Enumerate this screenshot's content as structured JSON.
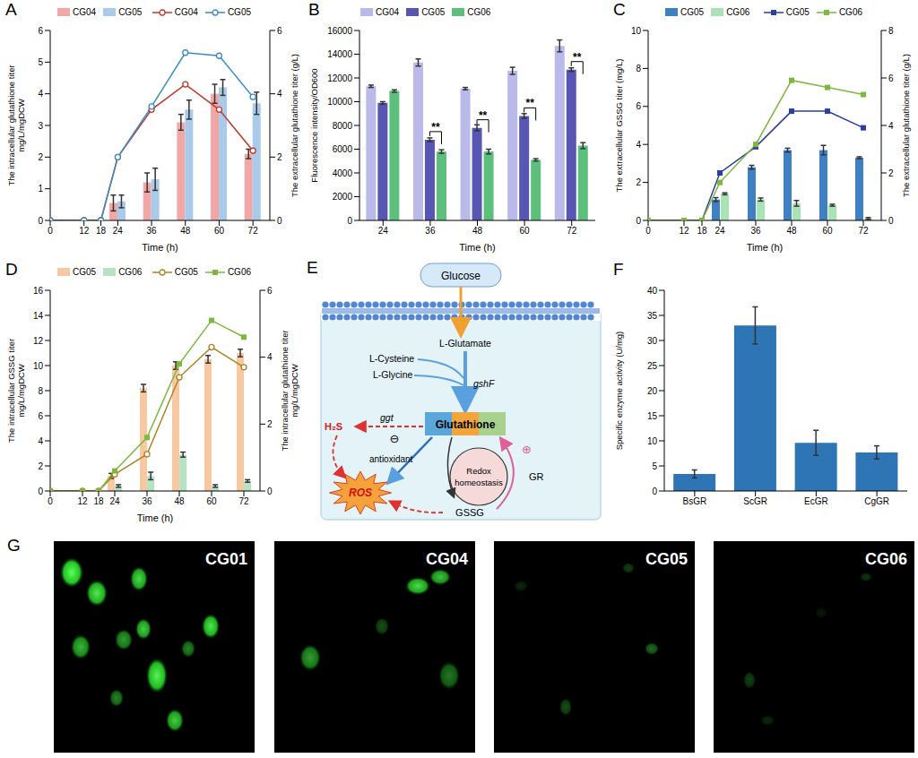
{
  "chart_data": [
    {
      "panel": "A",
      "type": "bar_line",
      "x": [
        0,
        12,
        18,
        24,
        36,
        48,
        60,
        72
      ],
      "xlim": [
        0,
        78
      ],
      "xticks": [
        0,
        12,
        18,
        24,
        36,
        48,
        60,
        72
      ],
      "x_label": "Time (h)",
      "y_label": [
        "The intracellular glutathione titer",
        "mg/L/mgDCW"
      ],
      "ylim": [
        0,
        6
      ],
      "yticks": [
        0,
        1,
        2,
        3,
        4,
        5,
        6
      ],
      "y2_label": [
        "The extracellular glutathione titer (g/L)"
      ],
      "y2lim": [
        0,
        6
      ],
      "y2ticks": [
        0,
        2,
        4,
        6
      ],
      "legend": "top",
      "series": [
        {
          "name": "CG04",
          "type": "bar",
          "axis": "y",
          "color": "#f2a7a7",
          "values": [
            null,
            null,
            null,
            0.55,
            1.2,
            3.1,
            4.0,
            2.1
          ],
          "error": [
            null,
            null,
            null,
            0.25,
            0.3,
            0.25,
            0.3,
            0.15
          ]
        },
        {
          "name": "CG05",
          "type": "bar",
          "axis": "y",
          "color": "#a9cbe9",
          "values": [
            null,
            null,
            null,
            0.6,
            1.3,
            3.5,
            4.2,
            3.7
          ],
          "error": [
            null,
            null,
            null,
            0.2,
            0.35,
            0.3,
            0.25,
            0.35
          ]
        },
        {
          "name": "CG04",
          "type": "line",
          "axis": "y2",
          "color": "#c0392b",
          "marker": "circle",
          "values": [
            0,
            0,
            0,
            2.0,
            3.5,
            4.3,
            3.5,
            2.2
          ]
        },
        {
          "name": "CG05",
          "type": "line",
          "axis": "y2",
          "color": "#3a8cc6",
          "marker": "circle",
          "values": [
            0,
            0,
            0,
            2.0,
            3.6,
            5.3,
            5.2,
            3.9
          ]
        }
      ]
    },
    {
      "panel": "B",
      "type": "bar",
      "categories": [
        "24",
        "36",
        "48",
        "60",
        "72"
      ],
      "x_label": "Time (h)",
      "y_label": [
        "Fluorescence intensity/OD600"
      ],
      "ylim": [
        0,
        16000
      ],
      "yticks": [
        0,
        2000,
        4000,
        6000,
        8000,
        10000,
        12000,
        14000,
        16000
      ],
      "legend": "top",
      "series": [
        {
          "name": "CG04",
          "color": "#b9b9ea",
          "values": [
            11300,
            13300,
            11100,
            12600,
            14700
          ],
          "error": [
            100,
            300,
            100,
            300,
            500
          ]
        },
        {
          "name": "CG05",
          "color": "#5757b3",
          "values": [
            9900,
            6800,
            7800,
            8800,
            12700
          ],
          "error": [
            100,
            150,
            250,
            200,
            150
          ]
        },
        {
          "name": "CG06",
          "color": "#5cbf7b",
          "values": [
            10900,
            5800,
            5800,
            5100,
            6300
          ],
          "error": [
            100,
            150,
            200,
            100,
            250
          ]
        }
      ],
      "annotations": [
        {
          "category": "36",
          "text": "**",
          "from": "CG05",
          "to": "CG06"
        },
        {
          "category": "48",
          "text": "**",
          "from": "CG05",
          "to": "CG06"
        },
        {
          "category": "60",
          "text": "**",
          "from": "CG05",
          "to": "CG06"
        },
        {
          "category": "72",
          "text": "**",
          "from": "CG05",
          "to": "CG06"
        }
      ]
    },
    {
      "panel": "C",
      "type": "bar_line",
      "x": [
        0,
        12,
        18,
        24,
        36,
        48,
        60,
        72
      ],
      "xlim": [
        0,
        78
      ],
      "xticks": [
        0,
        12,
        18,
        24,
        36,
        48,
        60,
        72
      ],
      "x_label": "Time (h)",
      "y_label": [
        "The extracellular GSSG titer (mg/L)"
      ],
      "ylim": [
        0,
        10
      ],
      "yticks": [
        0,
        2,
        4,
        6,
        8,
        10
      ],
      "y2_label": [
        "The extracellular glutathione titer (g/L)"
      ],
      "y2lim": [
        0,
        8
      ],
      "y2ticks": [
        0,
        2,
        4,
        6,
        8
      ],
      "legend": "top",
      "series": [
        {
          "name": "CG05",
          "type": "bar",
          "axis": "y",
          "color": "#3f80c2",
          "values": [
            null,
            null,
            null,
            1.1,
            2.8,
            3.7,
            3.7,
            3.3
          ],
          "error": [
            null,
            null,
            null,
            0.1,
            0.1,
            0.1,
            0.25,
            0.05
          ]
        },
        {
          "name": "CG06",
          "type": "bar",
          "axis": "y",
          "color": "#a9e2b3",
          "values": [
            null,
            null,
            null,
            1.4,
            1.1,
            0.9,
            0.8,
            0.1
          ],
          "error": [
            null,
            null,
            null,
            0.05,
            0.08,
            0.15,
            0.05,
            0.05
          ]
        },
        {
          "name": "CG05",
          "type": "line",
          "axis": "y2",
          "color": "#2b3ea1",
          "marker": "square",
          "values": [
            0,
            0,
            0,
            2.0,
            3.1,
            4.6,
            4.6,
            3.9
          ]
        },
        {
          "name": "CG06",
          "type": "line",
          "axis": "y2",
          "color": "#7cb93c",
          "marker": "square",
          "values": [
            0,
            0,
            0,
            1.6,
            3.2,
            5.9,
            5.6,
            5.3
          ]
        }
      ]
    },
    {
      "panel": "D",
      "type": "bar_line",
      "x": [
        0,
        12,
        18,
        24,
        36,
        48,
        60,
        72
      ],
      "xlim": [
        0,
        78
      ],
      "xticks": [
        0,
        12,
        18,
        24,
        36,
        48,
        60,
        72
      ],
      "x_label": "Time (h)",
      "y_label": [
        "The intracellular GSSG titer",
        "mg/L/mgDCW"
      ],
      "ylim": [
        0,
        16
      ],
      "yticks": [
        0,
        2,
        4,
        6,
        8,
        10,
        12,
        14,
        16
      ],
      "y2_label": [
        "The intracellular glutathione titer",
        "mg/L/mgDCW"
      ],
      "y2lim": [
        0,
        6
      ],
      "y2ticks": [
        0,
        2,
        4,
        6
      ],
      "legend": "top",
      "series": [
        {
          "name": "CG05",
          "type": "bar",
          "axis": "y",
          "color": "#f7c9a3",
          "values": [
            null,
            null,
            null,
            1.2,
            8.2,
            10.0,
            10.5,
            11.0
          ],
          "error": [
            null,
            null,
            null,
            0.2,
            0.3,
            0.3,
            0.3,
            0.3
          ]
        },
        {
          "name": "CG06",
          "type": "bar",
          "axis": "y",
          "color": "#b5e3c3",
          "values": [
            null,
            null,
            null,
            0.4,
            1.2,
            2.9,
            0.4,
            0.8
          ],
          "error": [
            null,
            null,
            null,
            0.1,
            0.3,
            0.2,
            0.1,
            0.1
          ]
        },
        {
          "name": "CG05",
          "type": "line",
          "axis": "y2",
          "color": "#b08020",
          "marker": "circle",
          "values": [
            0,
            0,
            0,
            0.5,
            1.1,
            3.4,
            4.3,
            3.7
          ]
        },
        {
          "name": "CG06",
          "type": "line",
          "axis": "y2",
          "color": "#7cb93c",
          "marker": "square",
          "values": [
            0,
            0,
            0,
            0.6,
            1.6,
            3.8,
            5.1,
            4.6
          ]
        }
      ]
    },
    {
      "panel": "F",
      "type": "bar",
      "categories": [
        "BsGR",
        "ScGR",
        "EcGR",
        "CgGR"
      ],
      "y_label": [
        "Specific enzyme activity (U/mg)"
      ],
      "ylim": [
        0,
        40
      ],
      "yticks": [
        0,
        5,
        10,
        15,
        20,
        25,
        30,
        35,
        40
      ],
      "color": "#2e75b6",
      "values": [
        3.4,
        33.0,
        9.6,
        7.7
      ],
      "error": [
        0.8,
        3.7,
        2.5,
        1.3
      ]
    }
  ],
  "diagram": {
    "panel": "E",
    "glucose": "Glucose",
    "substrates": [
      "L-Glutamate",
      "L-Cysteine",
      "L-Glycine"
    ],
    "enzyme": "gshF",
    "product": "Glutathione",
    "degradation_enzyme": "ggt",
    "byproduct": "H₂S",
    "inhibit": "⊖",
    "function": "antioxidant",
    "stress": "ROS",
    "cycle": [
      "Redox",
      "homeostasis"
    ],
    "oxidized": "GSSG",
    "reductase": "GR",
    "promote": "⊕"
  },
  "images": {
    "panel": "G",
    "labels": [
      "CG01",
      "CG04",
      "CG05",
      "CG06"
    ]
  }
}
